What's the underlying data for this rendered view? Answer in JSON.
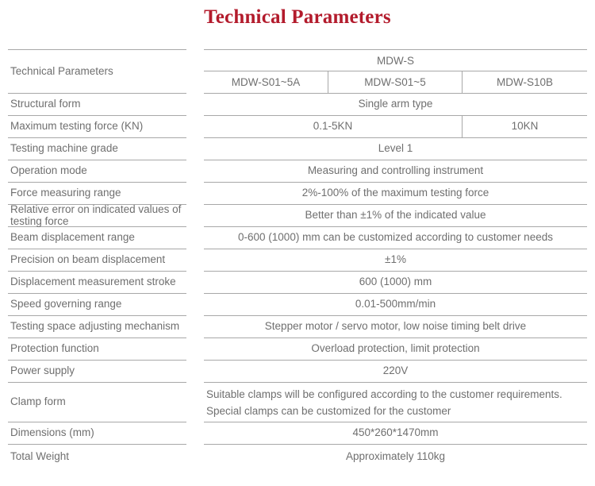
{
  "title": "Technical Parameters",
  "colors": {
    "title_accent": "#b31b2c",
    "body_text": "#6f6f6f",
    "grid_line": "#a8a8a8"
  },
  "table": {
    "header": {
      "label": "Technical Parameters",
      "series": "MDW-S",
      "models": [
        "MDW-S01~5A",
        "MDW-S01~5",
        "MDW-S10B"
      ]
    },
    "rows": [
      {
        "label": "Structural form",
        "value": "Single arm type"
      },
      {
        "label": "Maximum testing force (KN)",
        "values": [
          "0.1-5KN",
          "10KN"
        ]
      },
      {
        "label": "Testing machine grade",
        "value": "Level 1"
      },
      {
        "label": "Operation mode",
        "value": "Measuring and controlling instrument"
      },
      {
        "label": "Force measuring range",
        "value": "2%-100% of the maximum testing force"
      },
      {
        "label": "Relative error on indicated values of testing force",
        "value": "Better than ±1% of the indicated value"
      },
      {
        "label": "Beam displacement range",
        "value": "0-600 (1000) mm can be customized according to customer needs"
      },
      {
        "label": "Precision on beam displacement",
        "value": "±1%"
      },
      {
        "label": "Displacement measurement stroke",
        "value": "600 (1000) mm"
      },
      {
        "label": "Speed governing range",
        "value": "0.01-500mm/min"
      },
      {
        "label": "Testing space adjusting mechanism",
        "value": "Stepper motor / servo motor, low noise timing belt drive"
      },
      {
        "label": "Protection function",
        "value": "Overload protection, limit protection"
      },
      {
        "label": "Power supply",
        "value": "220V"
      },
      {
        "label": "Clamp form",
        "lines": [
          "Suitable clamps will be configured according to the customer requirements.",
          "Special clamps can be customized for the customer"
        ]
      },
      {
        "label": "Dimensions (mm)",
        "value": "450*260*1470mm"
      },
      {
        "label": "Total Weight",
        "value": "Approximately 110kg"
      }
    ]
  }
}
